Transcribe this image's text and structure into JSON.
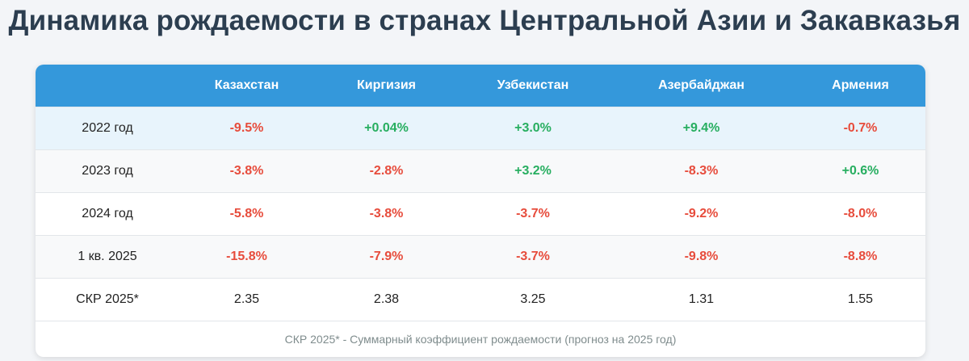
{
  "header": {
    "title": "Динамика рождаемости в странах Центральной Азии и Закавказья"
  },
  "table": {
    "columns": [
      "Казахстан",
      "Киргизия",
      "Узбекистан",
      "Азербайджан",
      "Армения"
    ],
    "rows": [
      {
        "label": "2022 год",
        "cells": [
          "-9.5%",
          "+0.04%",
          "+3.0%",
          "+9.4%",
          "-0.7%"
        ]
      },
      {
        "label": "2023 год",
        "cells": [
          "-3.8%",
          "-2.8%",
          "+3.2%",
          "-8.3%",
          "+0.6%"
        ]
      },
      {
        "label": "2024 год",
        "cells": [
          "-5.8%",
          "-3.8%",
          "-3.7%",
          "-9.2%",
          "-8.0%"
        ]
      },
      {
        "label": "1 кв. 2025",
        "cells": [
          "-15.8%",
          "-7.9%",
          "-3.7%",
          "-9.8%",
          "-8.8%"
        ]
      },
      {
        "label": "СКР 2025*",
        "cells": [
          2.35,
          2.38,
          3.25,
          1.31,
          1.55
        ]
      }
    ],
    "footnote": "СКР 2025* - Суммарный коэффициент рождаемости (прогноз на 2025 год)"
  }
}
